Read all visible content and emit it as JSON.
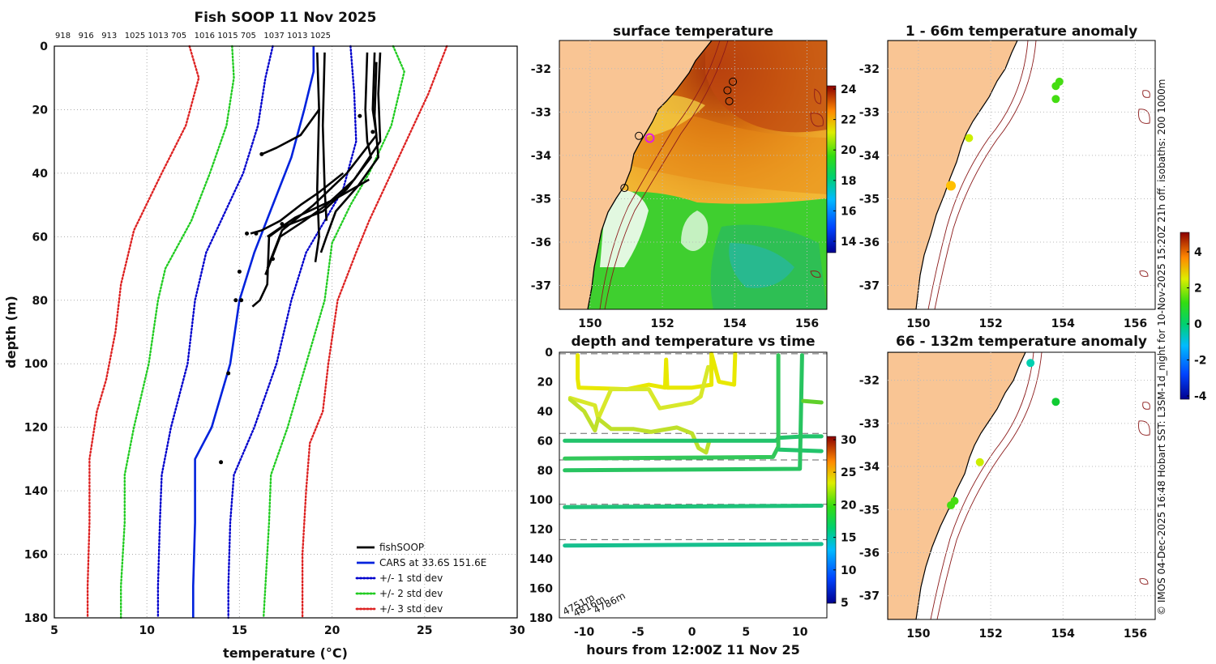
{
  "chart_data": [
    {
      "type": "line",
      "title": "Fish SOOP 11 Nov 2025",
      "top_labels": [
        "918",
        "916",
        "913",
        "1025",
        "1013",
        "705",
        "1016",
        "1015",
        "705",
        "1037",
        "1013",
        "1025"
      ],
      "xlabel": "temperature (°C)",
      "ylabel": "depth (m)",
      "xlim": [
        5,
        30
      ],
      "ylim": [
        0,
        180
      ],
      "x_ticks": [
        "5",
        "10",
        "15",
        "20",
        "25",
        "30"
      ],
      "y_ticks": [
        "0",
        "20",
        "40",
        "60",
        "80",
        "100",
        "120",
        "140",
        "160",
        "180"
      ],
      "legend": [
        "fishSOOP",
        "CARS at 33.6S 151.6E",
        "+/- 1 std dev",
        "+/- 2 std dev",
        "+/- 3 std dev"
      ],
      "series": [
        {
          "name": "CARS at 33.6S 151.6E",
          "color": "#0022dd",
          "style": "solid",
          "points": [
            [
              19.0,
              0
            ],
            [
              19.0,
              8
            ],
            [
              18.5,
              20
            ],
            [
              17.8,
              35
            ],
            [
              16.8,
              50
            ],
            [
              15.8,
              65
            ],
            [
              15.0,
              80
            ],
            [
              14.5,
              100
            ],
            [
              13.5,
              120
            ],
            [
              12.6,
              130
            ],
            [
              12.6,
              150
            ],
            [
              12.5,
              170
            ],
            [
              12.5,
              180
            ]
          ]
        },
        {
          "name": "-1 std",
          "color": "#0000cc",
          "style": "dotted",
          "points": [
            [
              16.8,
              0
            ],
            [
              16.4,
              10
            ],
            [
              16.0,
              25
            ],
            [
              15.2,
              40
            ],
            [
              14.0,
              55
            ],
            [
              13.2,
              65
            ],
            [
              12.6,
              80
            ],
            [
              12.2,
              100
            ],
            [
              11.3,
              120
            ],
            [
              10.8,
              135
            ],
            [
              10.7,
              150
            ],
            [
              10.6,
              170
            ],
            [
              10.6,
              180
            ]
          ]
        },
        {
          "name": "+1 std",
          "color": "#0000cc",
          "style": "dotted",
          "points": [
            [
              21.0,
              0
            ],
            [
              21.2,
              15
            ],
            [
              21.3,
              30
            ],
            [
              20.6,
              45
            ],
            [
              19.6,
              55
            ],
            [
              18.6,
              65
            ],
            [
              17.8,
              80
            ],
            [
              17.0,
              100
            ],
            [
              15.8,
              120
            ],
            [
              14.7,
              135
            ],
            [
              14.5,
              150
            ],
            [
              14.4,
              170
            ],
            [
              14.4,
              180
            ]
          ]
        },
        {
          "name": "-2 std",
          "color": "#22cc22",
          "style": "dotted",
          "points": [
            [
              14.6,
              0
            ],
            [
              14.7,
              10
            ],
            [
              14.3,
              25
            ],
            [
              13.4,
              40
            ],
            [
              12.4,
              55
            ],
            [
              11.0,
              70
            ],
            [
              10.6,
              80
            ],
            [
              10.1,
              100
            ],
            [
              9.3,
              120
            ],
            [
              8.8,
              135
            ],
            [
              8.8,
              150
            ],
            [
              8.6,
              170
            ],
            [
              8.6,
              180
            ]
          ]
        },
        {
          "name": "+2 std",
          "color": "#22cc22",
          "style": "dotted",
          "points": [
            [
              23.3,
              0
            ],
            [
              23.9,
              8
            ],
            [
              23.2,
              25
            ],
            [
              22.0,
              40
            ],
            [
              21.0,
              50
            ],
            [
              20.0,
              62
            ],
            [
              19.6,
              80
            ],
            [
              18.6,
              100
            ],
            [
              17.6,
              120
            ],
            [
              16.7,
              135
            ],
            [
              16.6,
              150
            ],
            [
              16.4,
              170
            ],
            [
              16.3,
              180
            ]
          ]
        },
        {
          "name": "-3 std",
          "color": "#dd2222",
          "style": "dotted",
          "points": [
            [
              12.3,
              0
            ],
            [
              12.8,
              10
            ],
            [
              12.1,
              25
            ],
            [
              10.8,
              40
            ],
            [
              9.3,
              58
            ],
            [
              8.6,
              75
            ],
            [
              8.3,
              90
            ],
            [
              7.8,
              105
            ],
            [
              7.3,
              115
            ],
            [
              6.9,
              130
            ],
            [
              6.9,
              150
            ],
            [
              6.8,
              170
            ],
            [
              6.8,
              180
            ]
          ]
        },
        {
          "name": "+3 std",
          "color": "#dd2222",
          "style": "dotted",
          "points": [
            [
              26.2,
              0
            ],
            [
              25.2,
              15
            ],
            [
              24.0,
              30
            ],
            [
              22.8,
              45
            ],
            [
              22.0,
              55
            ],
            [
              21.3,
              65
            ],
            [
              20.3,
              80
            ],
            [
              19.8,
              100
            ],
            [
              19.5,
              115
            ],
            [
              18.8,
              125
            ],
            [
              18.6,
              140
            ],
            [
              18.4,
              160
            ],
            [
              18.4,
              180
            ]
          ]
        }
      ],
      "profiles": [
        [
          [
            19.2,
            2
          ],
          [
            19.3,
            20
          ],
          [
            19.2,
            45
          ],
          [
            19.3,
            60
          ],
          [
            19.1,
            68
          ]
        ],
        [
          [
            19.6,
            2
          ],
          [
            19.5,
            25
          ],
          [
            19.6,
            45
          ],
          [
            19.7,
            55
          ]
        ],
        [
          [
            21.9,
            2
          ],
          [
            21.8,
            20
          ],
          [
            21.9,
            30
          ],
          [
            22.1,
            35
          ],
          [
            20.8,
            45
          ],
          [
            19.5,
            52
          ],
          [
            17.3,
            57
          ],
          [
            16.6,
            60
          ],
          [
            16.5,
            75
          ],
          [
            16.1,
            80
          ],
          [
            15.7,
            82
          ]
        ],
        [
          [
            22.3,
            2
          ],
          [
            22.2,
            20
          ],
          [
            22.4,
            28
          ],
          [
            20.8,
            40
          ],
          [
            19.0,
            50
          ],
          [
            17.3,
            58
          ],
          [
            16.5,
            70
          ]
        ],
        [
          [
            22.6,
            2
          ],
          [
            22.5,
            15
          ],
          [
            22.6,
            30
          ],
          [
            21.2,
            42
          ],
          [
            19.7,
            50
          ],
          [
            18.5,
            55
          ],
          [
            17.2,
            60
          ],
          [
            16.4,
            72
          ]
        ],
        [
          [
            22.4,
            5
          ],
          [
            22.3,
            22
          ],
          [
            22.5,
            35
          ],
          [
            21.4,
            44
          ],
          [
            20.2,
            52
          ],
          [
            19.7,
            60
          ],
          [
            19.4,
            65
          ]
        ],
        [
          [
            19.3,
            20
          ],
          [
            18.3,
            28
          ],
          [
            17.0,
            32
          ],
          [
            16.2,
            34
          ]
        ],
        [
          [
            20.6,
            40
          ],
          [
            19.3,
            46
          ],
          [
            18.3,
            50
          ],
          [
            17.2,
            55
          ],
          [
            16.2,
            58
          ],
          [
            15.6,
            59
          ]
        ],
        [
          [
            22.0,
            42
          ],
          [
            20.2,
            48
          ],
          [
            18.0,
            54
          ],
          [
            16.5,
            60
          ]
        ]
      ],
      "blobs": [
        [
          14.4,
          103
        ],
        [
          14.0,
          131
        ],
        [
          15.9,
          59
        ],
        [
          15.4,
          59
        ],
        [
          16.8,
          67
        ],
        [
          15.0,
          71
        ],
        [
          15.1,
          80
        ],
        [
          14.8,
          80
        ],
        [
          20.7,
          45
        ],
        [
          17.3,
          56
        ],
        [
          21.5,
          22
        ],
        [
          22.2,
          27
        ],
        [
          16.2,
          34
        ]
      ]
    },
    {
      "type": "heatmap",
      "title": "surface temperature",
      "x_ticks": [
        "150",
        "152",
        "154",
        "156"
      ],
      "y_ticks": [
        "-32",
        "-33",
        "-34",
        "-35",
        "-36",
        "-37"
      ],
      "colorbar_ticks": [
        "14",
        "16",
        "18",
        "20",
        "22",
        "24"
      ]
    },
    {
      "type": "scatter",
      "title": "depth and temperature vs time",
      "xlabel": "hours from 12:00Z 11 Nov 25",
      "x_ticks": [
        "-10",
        "-5",
        "0",
        "5",
        "10"
      ],
      "y_ticks": [
        "0",
        "20",
        "40",
        "60",
        "80",
        "100",
        "120",
        "140",
        "160",
        "180"
      ],
      "colorbar_ticks": [
        "5",
        "10",
        "15",
        "20",
        "25",
        "30"
      ],
      "depth_labels": [
        "4751m",
        "4816m",
        "4786m"
      ]
    },
    {
      "type": "scatter",
      "title": "1 - 66m temperature anomaly",
      "x_ticks": [
        "150",
        "152",
        "154",
        "156"
      ],
      "y_ticks": [
        "-32",
        "-33",
        "-34",
        "-35",
        "-36",
        "-37"
      ],
      "colorbar_ticks": [
        "4",
        "2",
        "0",
        "-2",
        "-4"
      ],
      "points": [
        [
          153.9,
          -32.3,
          1.2
        ],
        [
          153.8,
          -32.4,
          1.3
        ],
        [
          153.8,
          -32.7,
          1.2
        ],
        [
          151.4,
          -33.6,
          1.8
        ],
        [
          150.9,
          -34.7,
          2.8
        ]
      ]
    },
    {
      "type": "scatter",
      "title": "66 - 132m temperature anomaly",
      "x_ticks": [
        "150",
        "152",
        "154",
        "156"
      ],
      "y_ticks": [
        "-32",
        "-33",
        "-34",
        "-35",
        "-36",
        "-37"
      ],
      "points": [
        [
          153.1,
          -31.6,
          -1.2
        ],
        [
          153.8,
          -32.5,
          0.2
        ],
        [
          151.7,
          -33.9,
          1.6
        ],
        [
          151.0,
          -34.8,
          0.8
        ],
        [
          150.9,
          -34.9,
          0.6
        ]
      ]
    }
  ],
  "credit": "© IMOS 04-Dec-2025 16:48 Hobart SST: L3SM-1d_night for 10-Nov-2025 15:20Z 21h off. isobaths: 200  1000m"
}
